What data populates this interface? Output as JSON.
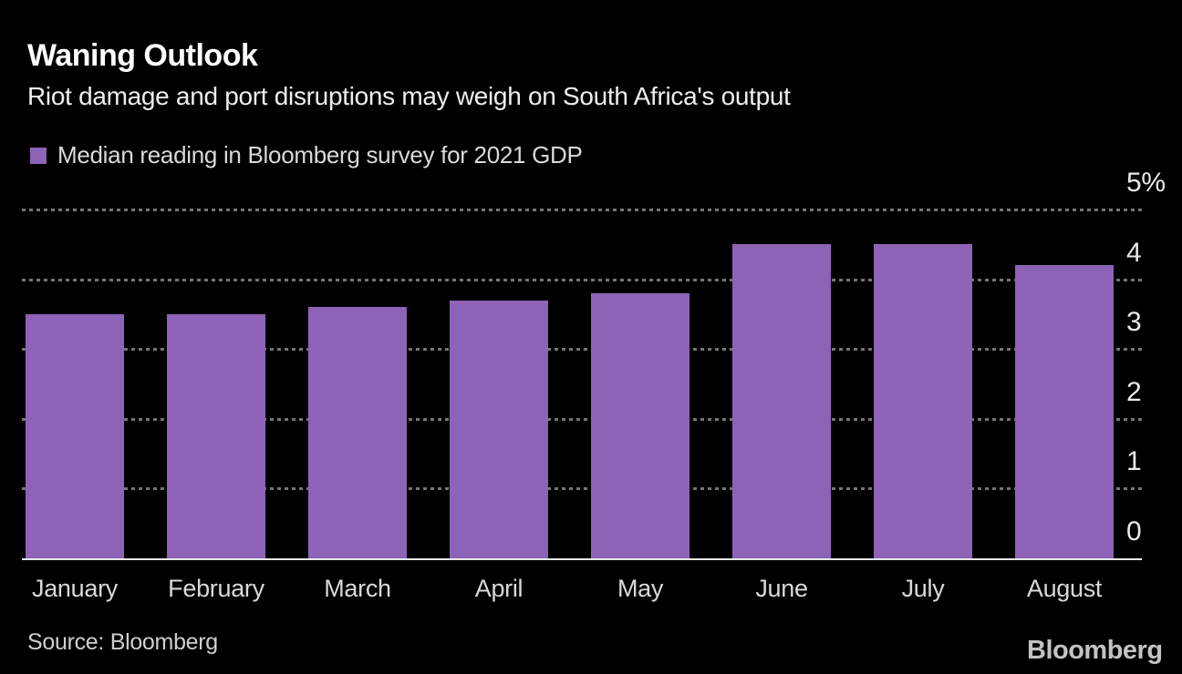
{
  "page": {
    "background": "#000000"
  },
  "header": {
    "title": "Waning Outlook",
    "subtitle": "Riot damage and port disruptions may weigh on South Africa's output"
  },
  "legend": {
    "label": "Median reading in Bloomberg survey for 2021 GDP",
    "swatch_color": "#8c63b6"
  },
  "chart_data": {
    "type": "bar",
    "title": "Waning Outlook",
    "subtitle": "Riot damage and port disruptions may weigh on South Africa's output",
    "legend_entries": [
      "Median reading in Bloomberg survey for 2021 GDP"
    ],
    "categories": [
      "January",
      "February",
      "March",
      "April",
      "May",
      "June",
      "July",
      "August"
    ],
    "values": [
      3.5,
      3.5,
      3.6,
      3.7,
      3.8,
      4.5,
      4.5,
      4.2
    ],
    "unit": "%",
    "xlabel": "",
    "ylabel": "",
    "ylim": [
      0,
      5
    ],
    "yticks": [
      0,
      1,
      2,
      3,
      4,
      5
    ],
    "ytick_labels": [
      "0",
      "1",
      "2",
      "3",
      "4",
      "5%"
    ],
    "bar_color": "#8c63b6",
    "grid": "horizontal-dashed",
    "gridline_color": "#757575",
    "axis_labels_side": "right",
    "background_color": "#000000"
  },
  "footer": {
    "source": "Source: Bloomberg",
    "brand": "Bloomberg"
  }
}
